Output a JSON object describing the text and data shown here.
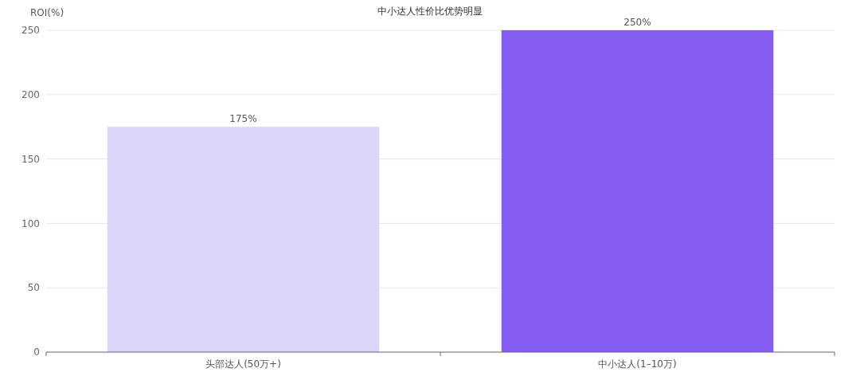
{
  "chart_data": {
    "type": "bar",
    "title": "中小达人性价比优势明显",
    "ylabel": "ROI(%)",
    "categories": [
      "头部达人(50万+)",
      "中小达人(1–10万)"
    ],
    "values": [
      175,
      250
    ],
    "colors": [
      "#dbd6f8",
      "#845ef0"
    ],
    "value_labels": [
      "175%",
      "250%"
    ],
    "ylim": [
      0,
      250
    ],
    "yticks": [
      0,
      50,
      100,
      150,
      200,
      250
    ],
    "grid": "y"
  }
}
